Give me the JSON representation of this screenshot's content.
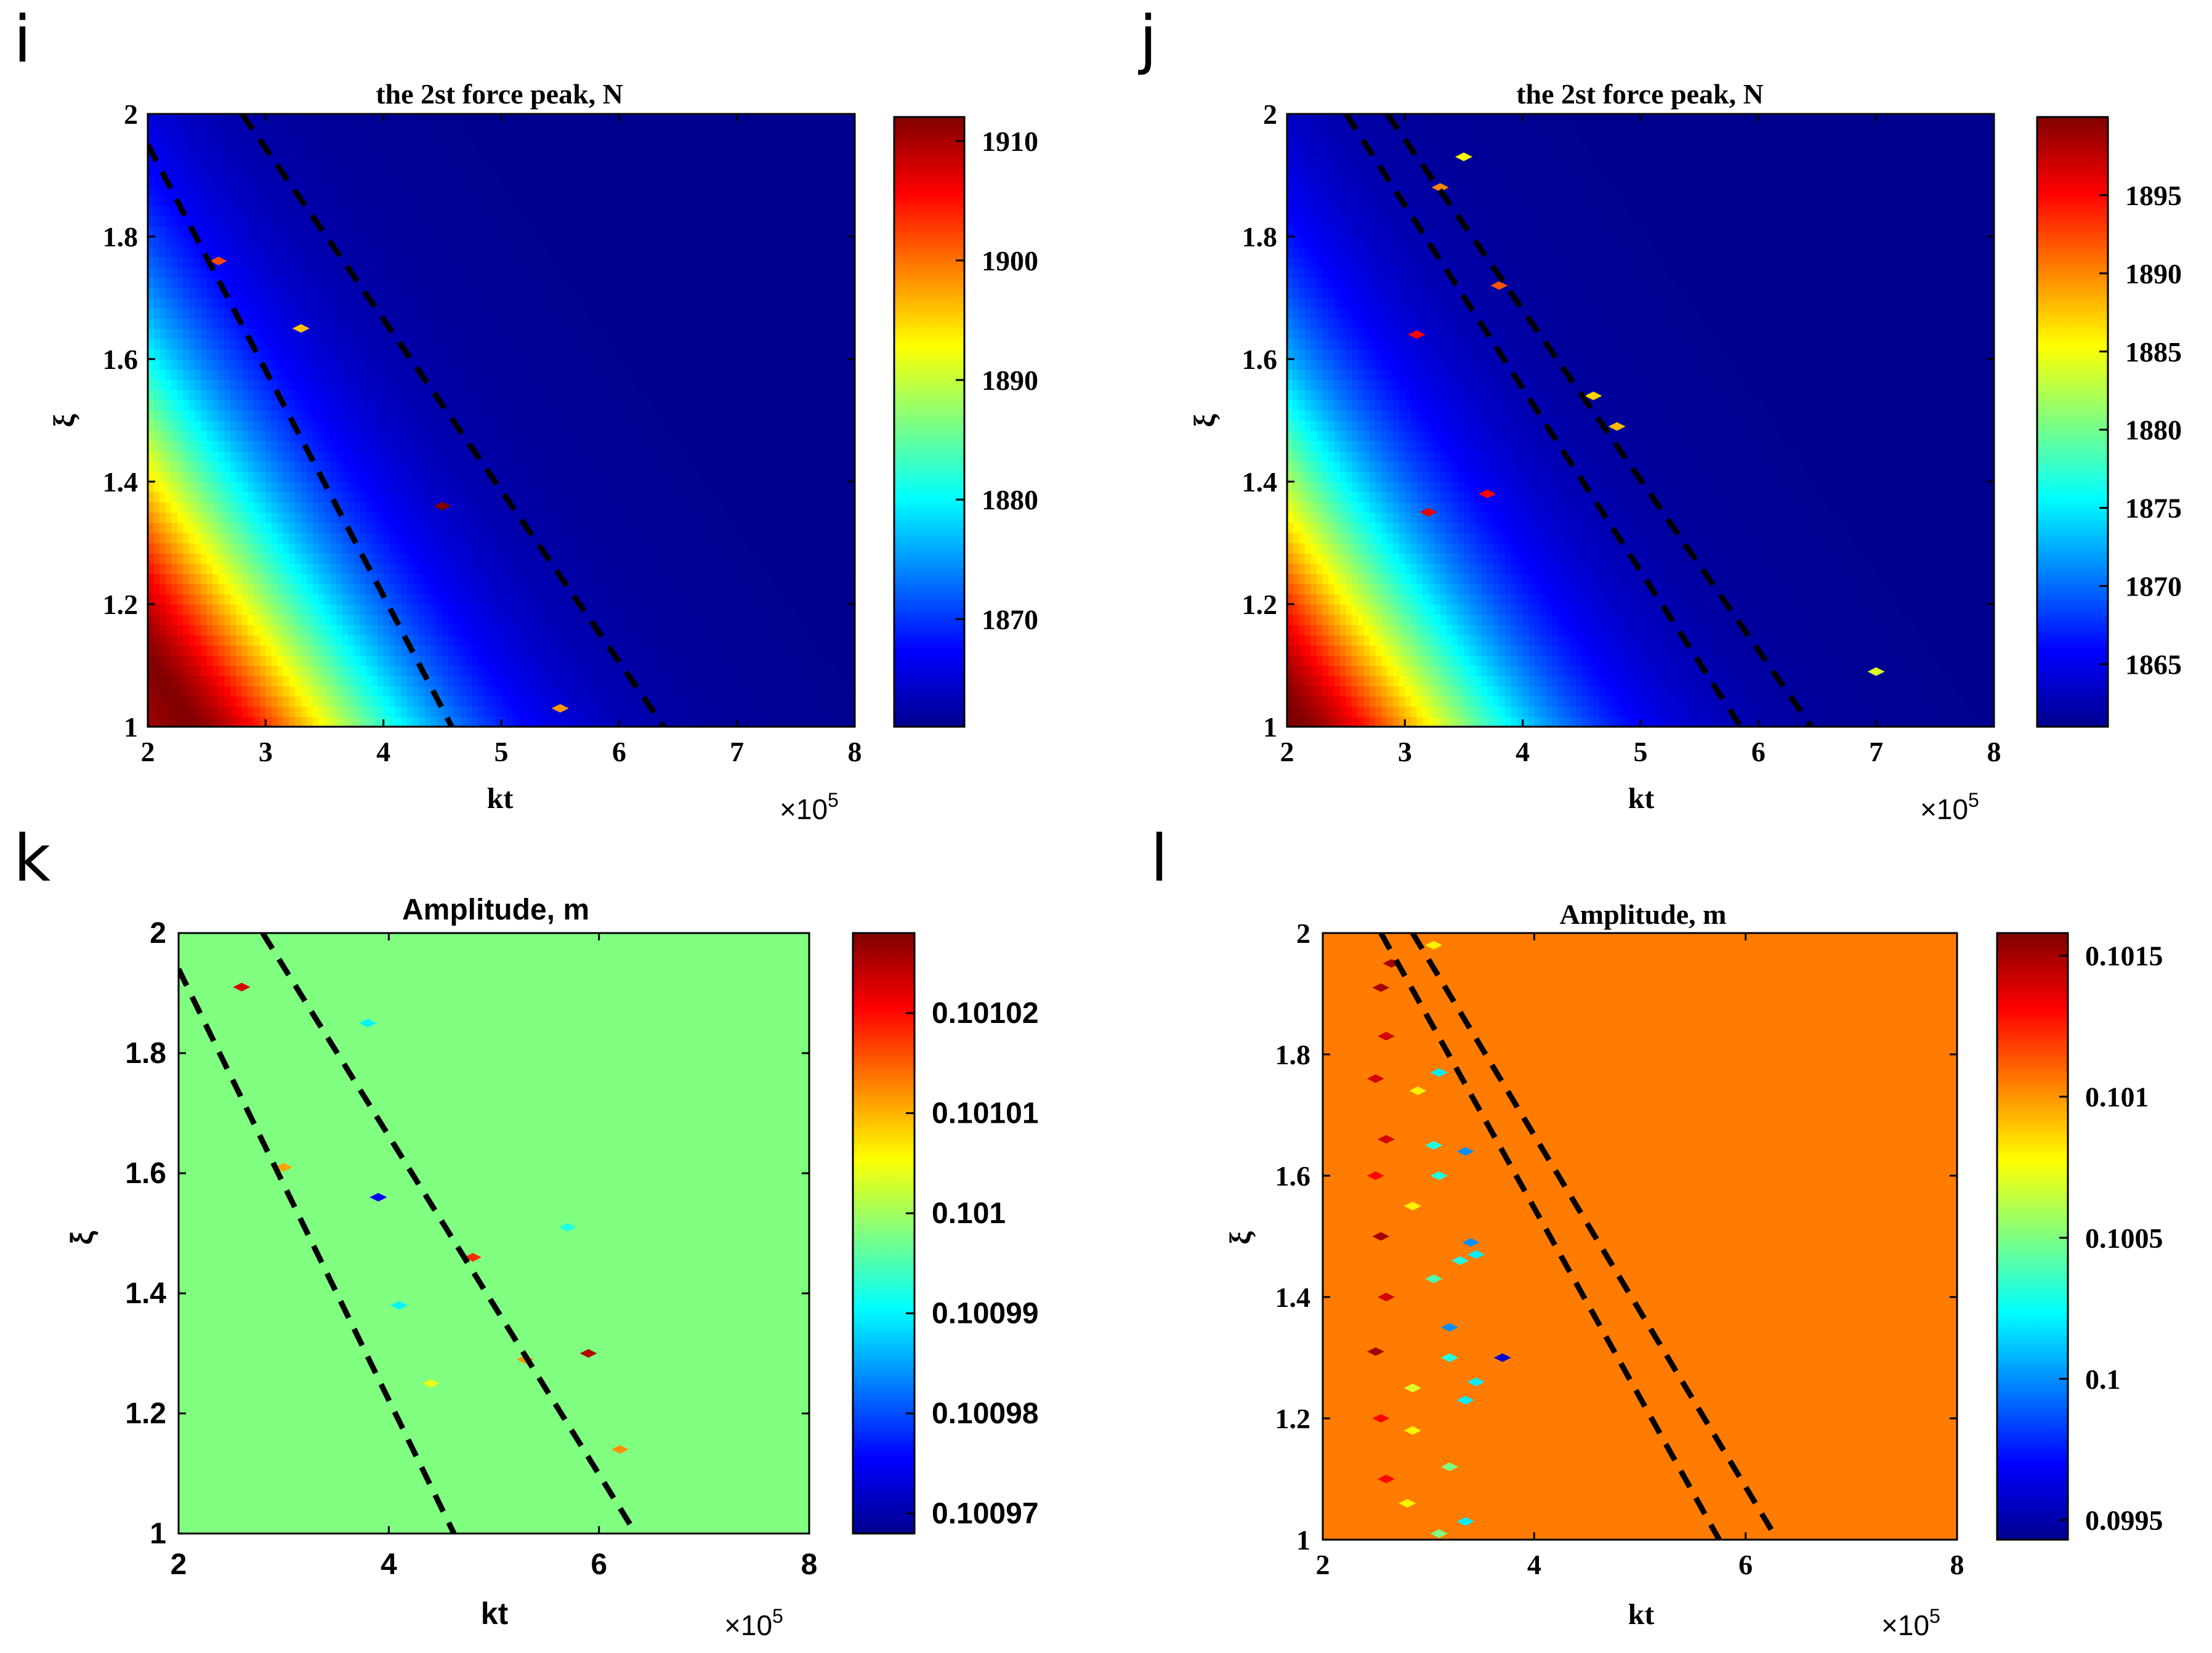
{
  "colors": {
    "jet": [
      "#00008f",
      "#0000ff",
      "#0080ff",
      "#00ffff",
      "#80ff80",
      "#ffff00",
      "#ff8000",
      "#ff0000",
      "#800000"
    ],
    "dash": "#000000",
    "axis": "#000000"
  },
  "chart_data": [
    {
      "id": "i",
      "panel_letter": "i",
      "type": "heatmap",
      "title": "the 2st force peak, N",
      "xlabel": "kt",
      "ylabel": "ξ",
      "x_multiplier": "×10",
      "x_multiplier_exp": "5",
      "xlim": [
        2,
        8
      ],
      "ylim": [
        1,
        2
      ],
      "xticks": [
        2,
        3,
        4,
        5,
        6,
        7,
        8
      ],
      "xtick_labels": [
        "2",
        "3",
        "4",
        "5",
        "6",
        "7",
        "8"
      ],
      "yticks": [
        1,
        1.2,
        1.4,
        1.6,
        1.8,
        2
      ],
      "ytick_labels": [
        "1",
        "1.2",
        "1.4",
        "1.6",
        "1.8",
        "2"
      ],
      "colorbar": {
        "range": [
          1861,
          1912
        ],
        "ticks": [
          1870,
          1880,
          1890,
          1900,
          1910
        ],
        "tick_labels": [
          "1870",
          "1880",
          "1890",
          "1900",
          "1910"
        ]
      },
      "field": {
        "model": "ridge",
        "max": 1912,
        "min": 1861,
        "ridge_c": 2.36,
        "drop_rate": 1.5,
        "rise_rate": 0.2
      },
      "dashed_lines": [
        {
          "x": [
            2.0,
            4.58
          ],
          "y": [
            1.95,
            1.0
          ]
        },
        {
          "x": [
            2.8,
            6.38
          ],
          "y": [
            2.0,
            1.0
          ]
        }
      ],
      "speckles": [
        {
          "x": 4.5,
          "y": 1.36,
          "v": 1912
        },
        {
          "x": 3.3,
          "y": 1.65,
          "v": 1896
        },
        {
          "x": 2.6,
          "y": 1.76,
          "v": 1902
        },
        {
          "x": 5.5,
          "y": 1.03,
          "v": 1898
        }
      ],
      "style": "serif"
    },
    {
      "id": "j",
      "panel_letter": "j",
      "type": "heatmap",
      "title": "the 2st force peak, N",
      "xlabel": "kt",
      "ylabel": "ξ",
      "x_multiplier": "×10",
      "x_multiplier_exp": "5",
      "xlim": [
        2,
        8
      ],
      "ylim": [
        1,
        2
      ],
      "xticks": [
        2,
        3,
        4,
        5,
        6,
        7,
        8
      ],
      "xtick_labels": [
        "2",
        "3",
        "4",
        "5",
        "6",
        "7",
        "8"
      ],
      "yticks": [
        1,
        1.2,
        1.4,
        1.6,
        1.8,
        2
      ],
      "ytick_labels": [
        "1",
        "1.2",
        "1.4",
        "1.6",
        "1.8",
        "2"
      ],
      "colorbar": {
        "range": [
          1861,
          1900
        ],
        "ticks": [
          1865,
          1870,
          1875,
          1880,
          1885,
          1890,
          1895
        ],
        "tick_labels": [
          "1865",
          "1870",
          "1875",
          "1880",
          "1885",
          "1890",
          "1895"
        ]
      },
      "field": {
        "model": "ridge",
        "max": 1900,
        "min": 1861,
        "ridge_c": 2.1,
        "drop_rate": 1.45,
        "rise_rate": 0.18
      },
      "dashed_lines": [
        {
          "x": [
            2.5,
            5.85
          ],
          "y": [
            2.0,
            1.0
          ]
        },
        {
          "x": [
            2.85,
            6.45
          ],
          "y": [
            2.0,
            1.0
          ]
        }
      ],
      "speckles": [
        {
          "x": 3.5,
          "y": 1.93,
          "v": 1885
        },
        {
          "x": 4.6,
          "y": 1.54,
          "v": 1887
        },
        {
          "x": 4.8,
          "y": 1.49,
          "v": 1888
        },
        {
          "x": 3.2,
          "y": 1.35,
          "v": 1896
        },
        {
          "x": 3.7,
          "y": 1.38,
          "v": 1895
        },
        {
          "x": 7.0,
          "y": 1.09,
          "v": 1884
        },
        {
          "x": 3.1,
          "y": 1.64,
          "v": 1895
        },
        {
          "x": 3.3,
          "y": 1.88,
          "v": 1890
        },
        {
          "x": 3.8,
          "y": 1.72,
          "v": 1892
        }
      ],
      "style": "serif"
    },
    {
      "id": "k",
      "panel_letter": "k",
      "type": "heatmap",
      "title": "Amplitude, m",
      "xlabel": "kt",
      "ylabel": "ξ",
      "x_multiplier": "×10",
      "x_multiplier_exp": "5",
      "xlim": [
        2,
        8
      ],
      "ylim": [
        1,
        2
      ],
      "xticks": [
        2,
        4,
        6,
        8
      ],
      "xtick_labels": [
        "2",
        "4",
        "6",
        "8"
      ],
      "yticks": [
        1,
        1.2,
        1.4,
        1.6,
        1.8,
        2
      ],
      "ytick_labels": [
        "1",
        "1.2",
        "1.4",
        "1.6",
        "1.8",
        "2"
      ],
      "colorbar": {
        "range": [
          0.100968,
          0.101028
        ],
        "ticks": [
          0.10097,
          0.10098,
          0.10099,
          0.101,
          0.10101,
          0.10102
        ],
        "tick_labels": [
          "0.10097",
          "0.10098",
          "0.10099",
          "0.101",
          "0.10101",
          "0.10102"
        ]
      },
      "field": {
        "model": "flat",
        "value": 0.100998
      },
      "dashed_lines": [
        {
          "x": [
            2.0,
            4.62
          ],
          "y": [
            1.94,
            1.0
          ]
        },
        {
          "x": [
            2.8,
            6.35
          ],
          "y": [
            2.0,
            1.0
          ]
        }
      ],
      "speckles": [
        {
          "x": 2.6,
          "y": 1.91,
          "v": 0.101023
        },
        {
          "x": 3.0,
          "y": 1.61,
          "v": 0.101011
        },
        {
          "x": 3.9,
          "y": 1.56,
          "v": 0.100975
        },
        {
          "x": 3.8,
          "y": 1.85,
          "v": 0.10099
        },
        {
          "x": 4.8,
          "y": 1.46,
          "v": 0.101018
        },
        {
          "x": 4.1,
          "y": 1.38,
          "v": 0.10099
        },
        {
          "x": 5.9,
          "y": 1.3,
          "v": 0.101025
        },
        {
          "x": 5.3,
          "y": 1.29,
          "v": 0.101012
        },
        {
          "x": 6.2,
          "y": 1.14,
          "v": 0.101012
        },
        {
          "x": 4.4,
          "y": 1.25,
          "v": 0.101004
        },
        {
          "x": 5.7,
          "y": 1.51,
          "v": 0.100992
        }
      ],
      "style": "sans"
    },
    {
      "id": "l",
      "panel_letter": "l",
      "type": "heatmap",
      "title": "Amplitude, m",
      "xlabel": "kt",
      "ylabel": "ξ",
      "x_multiplier": "×10",
      "x_multiplier_exp": "5",
      "xlim": [
        2,
        8
      ],
      "ylim": [
        1,
        2
      ],
      "xticks": [
        2,
        4,
        6,
        8
      ],
      "xtick_labels": [
        "2",
        "4",
        "6",
        "8"
      ],
      "yticks": [
        1,
        1.2,
        1.4,
        1.6,
        1.8,
        2
      ],
      "ytick_labels": [
        "1",
        "1.2",
        "1.4",
        "1.6",
        "1.8",
        "2"
      ],
      "colorbar": {
        "range": [
          0.09943,
          0.10158
        ],
        "ticks": [
          0.0995,
          0.1,
          0.1005,
          0.101,
          0.1015
        ],
        "tick_labels": [
          "0.0995",
          "0.1",
          "0.1005",
          "0.101",
          "0.1015"
        ]
      },
      "field": {
        "model": "flat",
        "value": 0.10105
      },
      "dashed_lines": [
        {
          "x": [
            2.55,
            5.75
          ],
          "y": [
            2.0,
            1.0
          ]
        },
        {
          "x": [
            2.85,
            6.3
          ],
          "y": [
            2.0,
            1.0
          ]
        }
      ],
      "speckles": [
        {
          "x": 2.65,
          "y": 1.95,
          "v": 0.1015
        },
        {
          "x": 2.55,
          "y": 1.91,
          "v": 0.1015
        },
        {
          "x": 2.6,
          "y": 1.83,
          "v": 0.1014
        },
        {
          "x": 2.5,
          "y": 1.76,
          "v": 0.1014
        },
        {
          "x": 2.6,
          "y": 1.66,
          "v": 0.1014
        },
        {
          "x": 2.5,
          "y": 1.6,
          "v": 0.1013
        },
        {
          "x": 2.55,
          "y": 1.5,
          "v": 0.1015
        },
        {
          "x": 2.6,
          "y": 1.4,
          "v": 0.1014
        },
        {
          "x": 2.5,
          "y": 1.31,
          "v": 0.1015
        },
        {
          "x": 2.55,
          "y": 1.2,
          "v": 0.1013
        },
        {
          "x": 2.6,
          "y": 1.1,
          "v": 0.1013
        },
        {
          "x": 3.05,
          "y": 1.98,
          "v": 0.1008
        },
        {
          "x": 3.1,
          "y": 1.77,
          "v": 0.1002
        },
        {
          "x": 3.05,
          "y": 1.65,
          "v": 0.1003
        },
        {
          "x": 3.35,
          "y": 1.64,
          "v": 0.1
        },
        {
          "x": 3.1,
          "y": 1.6,
          "v": 0.1003
        },
        {
          "x": 3.4,
          "y": 1.49,
          "v": 0.1
        },
        {
          "x": 3.45,
          "y": 1.47,
          "v": 0.1002
        },
        {
          "x": 3.3,
          "y": 1.46,
          "v": 0.1003
        },
        {
          "x": 3.05,
          "y": 1.43,
          "v": 0.1004
        },
        {
          "x": 3.2,
          "y": 1.35,
          "v": 0.1
        },
        {
          "x": 3.7,
          "y": 1.3,
          "v": 0.0996
        },
        {
          "x": 3.2,
          "y": 1.3,
          "v": 0.1003
        },
        {
          "x": 3.45,
          "y": 1.26,
          "v": 0.1002
        },
        {
          "x": 3.35,
          "y": 1.23,
          "v": 0.1002
        },
        {
          "x": 3.2,
          "y": 1.12,
          "v": 0.1005
        },
        {
          "x": 3.35,
          "y": 1.03,
          "v": 0.1002
        },
        {
          "x": 3.1,
          "y": 1.01,
          "v": 0.1005
        },
        {
          "x": 2.85,
          "y": 1.55,
          "v": 0.1008
        },
        {
          "x": 2.85,
          "y": 1.25,
          "v": 0.1007
        },
        {
          "x": 2.85,
          "y": 1.18,
          "v": 0.1008
        },
        {
          "x": 2.8,
          "y": 1.06,
          "v": 0.1008
        },
        {
          "x": 2.9,
          "y": 1.74,
          "v": 0.1008
        }
      ],
      "style": "serif"
    }
  ]
}
